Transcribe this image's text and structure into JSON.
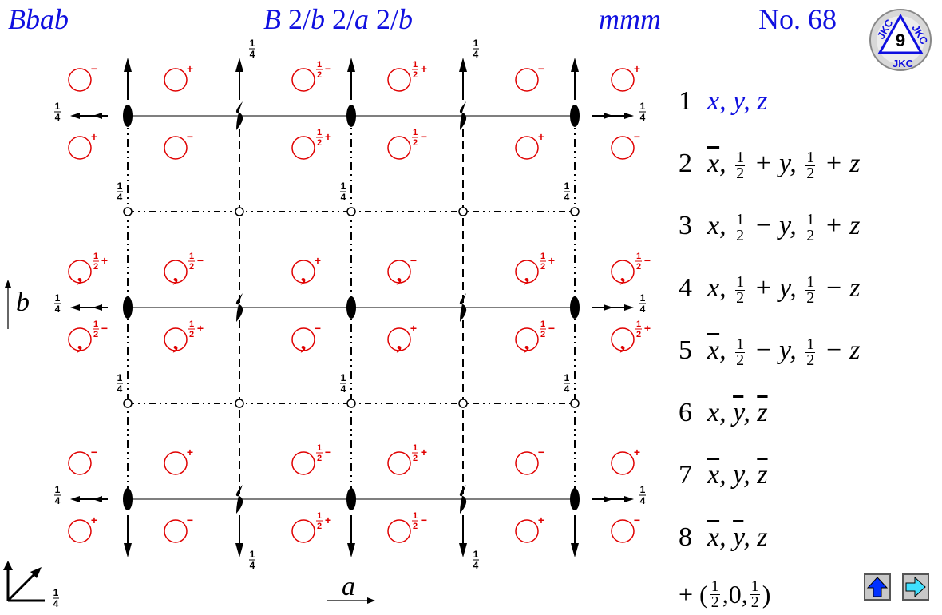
{
  "header": {
    "symbol": "Bbab",
    "full_symbol": "B 2/b 2/a 2/b",
    "point_group": "mmm",
    "number": "No. 68"
  },
  "operations": [
    {
      "num": "1",
      "expr": "x, y, z"
    },
    {
      "num": "2",
      "expr": "x̄, ½ + y, ½ + z"
    },
    {
      "num": "3",
      "expr": "x, ½ − y, ½ + z"
    },
    {
      "num": "4",
      "expr": "x, ½ + y, ½ − z"
    },
    {
      "num": "5",
      "expr": "x̄, ½ − y, ½ − z"
    },
    {
      "num": "6",
      "expr": "x, ȳ, z̄"
    },
    {
      "num": "7",
      "expr": "x̄, y, z̄"
    },
    {
      "num": "8",
      "expr": "x̄, ȳ, z"
    }
  ],
  "centering": "+ (½,0,½)",
  "axes": {
    "a": "a",
    "b": "b",
    "quarter": "1/4"
  },
  "colors": {
    "title": "#1010e0",
    "symbols": "#e00000",
    "lines": "#000000"
  },
  "icons": [
    "jkc-logo-icon",
    "up-arrow-icon",
    "right-arrow-icon"
  ]
}
